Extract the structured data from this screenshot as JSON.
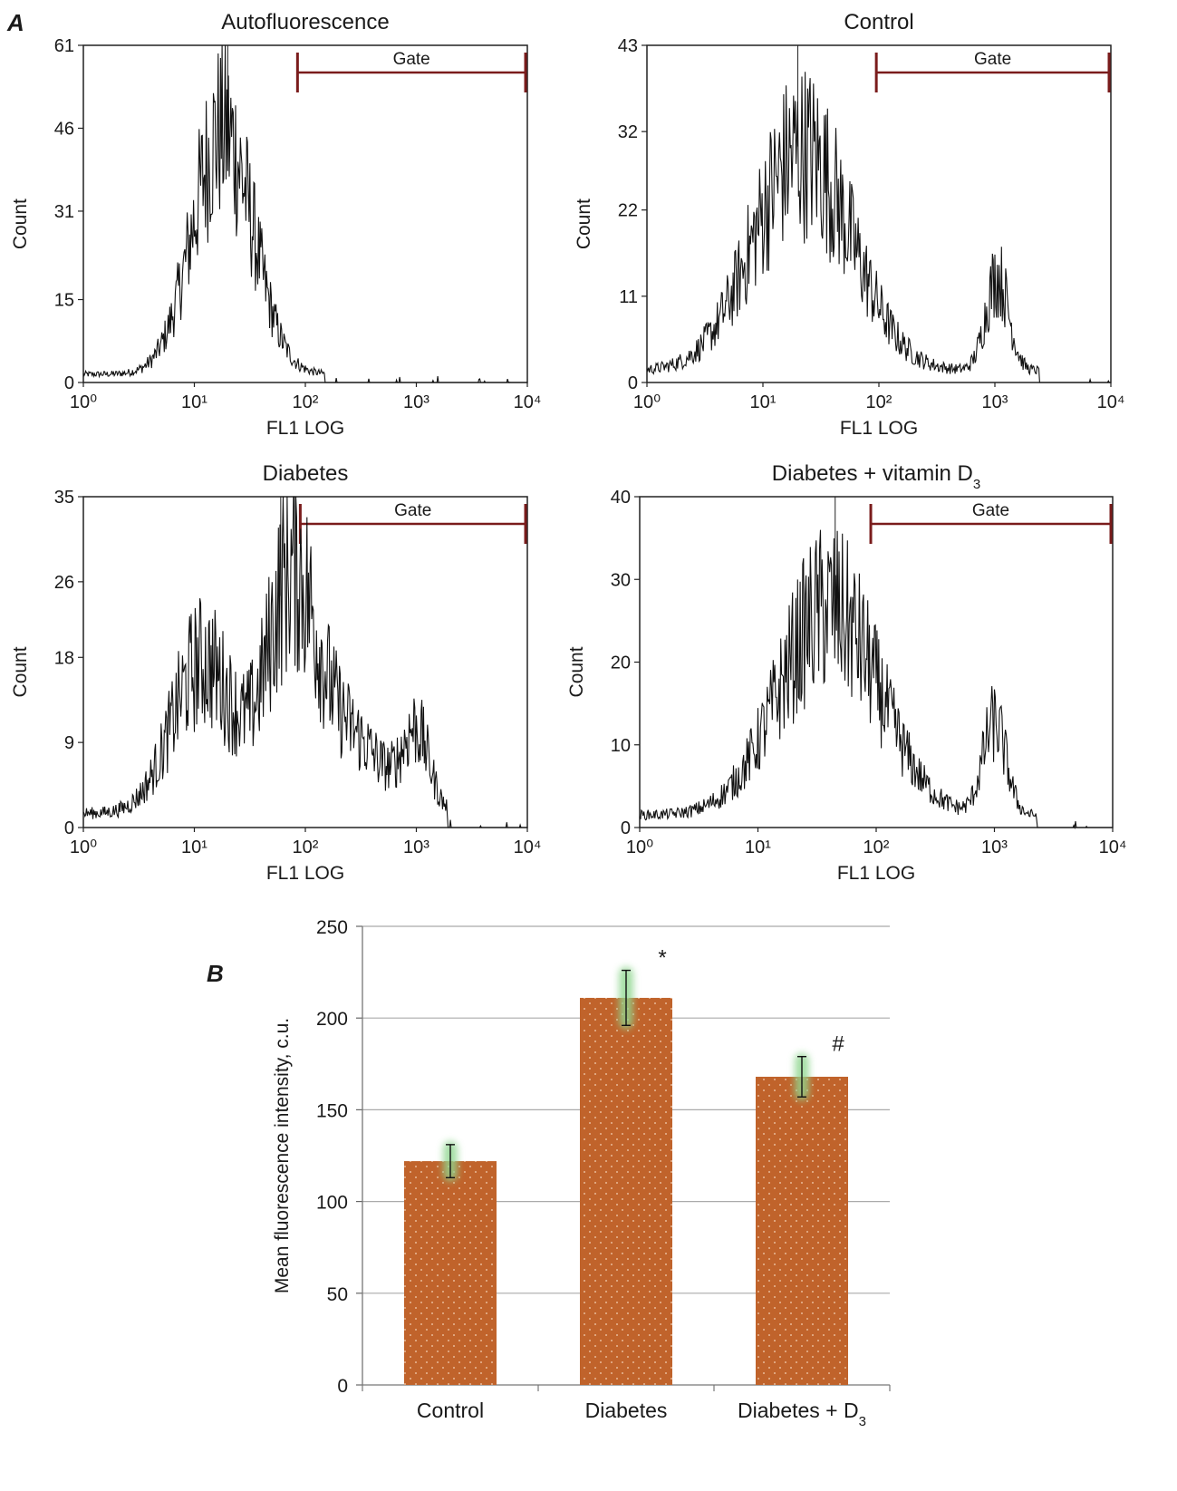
{
  "panel_a_label": "A",
  "panel_b_label": "B",
  "colors": {
    "histogram": "#111111",
    "gate": "#7a1c1c",
    "bar_fill": "#c0632b",
    "error_glow": "#8fd68f",
    "grid": "#aaaaaa"
  },
  "chart_data": [
    {
      "type": "histogram",
      "title": "Autofluorescence",
      "xlabel": "FL1 LOG",
      "ylabel": "Count",
      "x_scale": "log",
      "xlim": [
        1,
        10000
      ],
      "x_ticks": [
        1,
        10,
        100,
        1000,
        10000
      ],
      "x_tick_labels": [
        "10⁰",
        "10¹",
        "10²",
        "10³",
        "10⁴"
      ],
      "ylim": [
        0,
        61
      ],
      "y_ticks": [
        0,
        15,
        31,
        46,
        61
      ],
      "gate_label": "Gate",
      "gate_range": [
        85,
        10000
      ],
      "marker_x": 20,
      "peaks": [
        {
          "x": 18,
          "height": 44,
          "width_decades": 0.27
        }
      ],
      "baseline": 1.5,
      "noise": 0.38,
      "right_cutoff": 150
    },
    {
      "type": "histogram",
      "title": "Control",
      "xlabel": "FL1 LOG",
      "ylabel": "Count",
      "x_scale": "log",
      "xlim": [
        1,
        10000
      ],
      "x_ticks": [
        1,
        10,
        100,
        1000,
        10000
      ],
      "x_tick_labels": [
        "10⁰",
        "10¹",
        "10²",
        "10³",
        "10⁴"
      ],
      "ylim": [
        0,
        43
      ],
      "y_ticks": [
        0,
        11,
        22,
        32,
        43
      ],
      "gate_label": "Gate",
      "gate_range": [
        95,
        10000
      ],
      "marker_x": 20,
      "peaks": [
        {
          "x": 22,
          "height": 28,
          "width_decades": 0.42
        },
        {
          "x": 1050,
          "height": 12,
          "width_decades": 0.1
        }
      ],
      "baseline": 1.5,
      "noise": 0.4,
      "right_cutoff": 2400
    },
    {
      "type": "histogram",
      "title": "Diabetes",
      "xlabel": "FL1 LOG",
      "ylabel": "Count",
      "x_scale": "log",
      "xlim": [
        1,
        10000
      ],
      "x_ticks": [
        1,
        10,
        100,
        1000,
        10000
      ],
      "x_tick_labels": [
        "10⁰",
        "10¹",
        "10²",
        "10³",
        "10⁴"
      ],
      "ylim": [
        0,
        35
      ],
      "y_ticks": [
        0,
        9,
        18,
        26,
        35
      ],
      "gate_label": "Gate",
      "gate_range": [
        90,
        10000
      ],
      "marker_x": 60,
      "peaks": [
        {
          "x": 12,
          "height": 16,
          "width_decades": 0.28
        },
        {
          "x": 75,
          "height": 24,
          "width_decades": 0.22
        },
        {
          "x": 250,
          "height": 8,
          "width_decades": 0.3
        },
        {
          "x": 1000,
          "height": 8,
          "width_decades": 0.12
        }
      ],
      "baseline": 1.5,
      "noise": 0.42,
      "right_cutoff": 1900
    },
    {
      "type": "histogram",
      "title": "Diabetes + vitamin D",
      "title_subscript": "3",
      "xlabel": "FL1 LOG",
      "ylabel": "Count",
      "x_scale": "log",
      "xlim": [
        1,
        10000
      ],
      "x_ticks": [
        1,
        10,
        100,
        1000,
        10000
      ],
      "x_tick_labels": [
        "10⁰",
        "10¹",
        "10²",
        "10³",
        "10⁴"
      ],
      "ylim": [
        0,
        40
      ],
      "y_ticks": [
        0,
        10,
        20,
        30,
        40
      ],
      "gate_label": "Gate",
      "gate_range": [
        90,
        10000
      ],
      "marker_x": 45,
      "peaks": [
        {
          "x": 40,
          "height": 25,
          "width_decades": 0.42
        },
        {
          "x": 1000,
          "height": 11,
          "width_decades": 0.1
        }
      ],
      "baseline": 1.5,
      "noise": 0.4,
      "right_cutoff": 2300
    },
    {
      "type": "bar",
      "ylabel": "Mean fluorescence intensity, c.u.",
      "ylim": [
        0,
        250
      ],
      "y_ticks": [
        0,
        50,
        100,
        150,
        200,
        250
      ],
      "categories": [
        "Control",
        "Diabetes",
        "Diabetes + D"
      ],
      "category_subscripts": [
        "",
        "",
        "3"
      ],
      "values": [
        122,
        211,
        168
      ],
      "errors": [
        9,
        15,
        11
      ],
      "annotations": [
        "",
        "*",
        "#"
      ],
      "grid": true
    }
  ]
}
